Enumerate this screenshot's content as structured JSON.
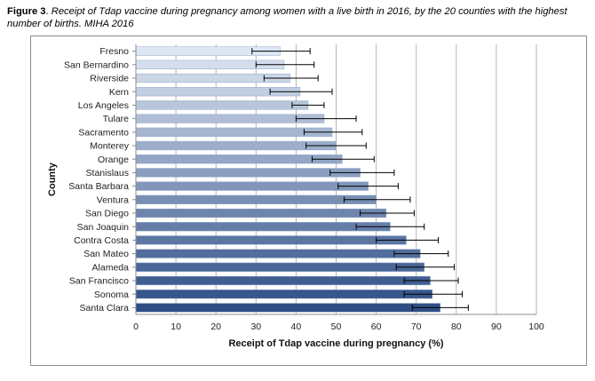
{
  "caption": {
    "label": "Figure 3",
    "separator": ". ",
    "text": "Receipt of Tdap vaccine during pregnancy among women with a live birth in 2016, by the 20 counties with the highest number of births. MIHA 2016"
  },
  "chart_data": {
    "type": "bar",
    "orientation": "horizontal",
    "title": "",
    "xlabel": "Receipt of Tdap vaccine during pregnancy (%)",
    "ylabel": "County",
    "xlim": [
      0,
      100
    ],
    "x_ticks": [
      0,
      10,
      20,
      30,
      40,
      50,
      60,
      70,
      80,
      90,
      100
    ],
    "grid": "vertical",
    "legend": "none",
    "categories": [
      "Fresno",
      "San Bernardino",
      "Riverside",
      "Kern",
      "Los Angeles",
      "Tulare",
      "Sacramento",
      "Monterey",
      "Orange",
      "Stanislaus",
      "Santa Barbara",
      "Ventura",
      "San Diego",
      "San Joaquin",
      "Contra Costa",
      "San Mateo",
      "Alameda",
      "San Francisco",
      "Sonoma",
      "Santa Clara"
    ],
    "values": [
      36.0,
      37.0,
      38.5,
      41.0,
      43.0,
      47.0,
      49.0,
      50.0,
      51.5,
      56.0,
      58.0,
      60.0,
      62.5,
      63.5,
      67.5,
      71.0,
      72.0,
      73.5,
      74.0,
      76.0
    ],
    "error_low": [
      29.0,
      30.0,
      32.0,
      33.5,
      39.0,
      40.0,
      42.0,
      42.5,
      44.0,
      48.5,
      50.5,
      52.0,
      56.0,
      55.0,
      60.0,
      64.5,
      65.0,
      67.0,
      67.0,
      69.0
    ],
    "error_high": [
      43.5,
      44.5,
      45.5,
      49.0,
      47.0,
      55.0,
      56.5,
      57.5,
      59.5,
      64.5,
      65.5,
      68.5,
      69.5,
      72.0,
      75.5,
      78.0,
      79.5,
      80.5,
      81.5,
      83.0
    ],
    "colors": {
      "light": "#dde6f3",
      "dark": "#2e4e85",
      "error_bar": "#000000",
      "grid": "#b5b5b5",
      "axis": "#8c8c8c"
    }
  }
}
